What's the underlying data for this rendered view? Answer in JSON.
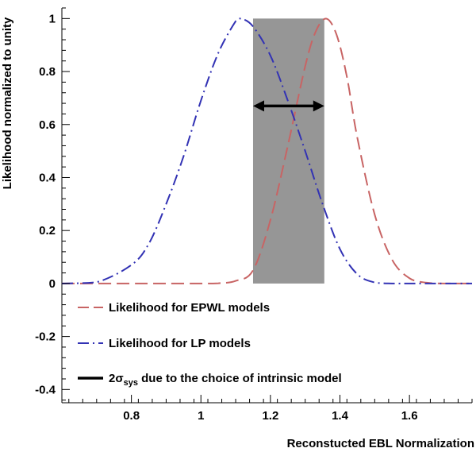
{
  "chart_data": {
    "type": "line",
    "title": "",
    "xlabel": "Reconstucted EBL Normalization",
    "ylabel": "Likelihood normalized to unity",
    "xlim": [
      0.6,
      1.78
    ],
    "ylim": [
      -0.45,
      1.04
    ],
    "x_ticks": [
      0.8,
      1.0,
      1.2,
      1.4,
      1.6
    ],
    "x_tick_labels": [
      "0.8",
      "1",
      "1.2",
      "1.4",
      "1.6"
    ],
    "y_ticks": [
      -0.4,
      -0.2,
      0,
      0.2,
      0.4,
      0.6,
      0.8,
      1.0
    ],
    "y_tick_labels": [
      "-0.4",
      "-0.2",
      "0",
      "0.2",
      "0.4",
      "0.6",
      "0.8",
      "1"
    ],
    "grid": false,
    "legend_position": "lower-left inside",
    "series": [
      {
        "name": "Likelihood for EPWL models",
        "style": "long-dash",
        "color": "#c86464",
        "peak_x": 1.36,
        "x": [
          0.6,
          0.8,
          0.9,
          1.0,
          1.05,
          1.1,
          1.15,
          1.2,
          1.25,
          1.3,
          1.33,
          1.36,
          1.39,
          1.42,
          1.45,
          1.5,
          1.55,
          1.6,
          1.65,
          1.7,
          1.78
        ],
        "values": [
          0,
          0,
          0,
          0,
          0.001,
          0.01,
          0.05,
          0.24,
          0.52,
          0.82,
          0.95,
          1.0,
          0.94,
          0.78,
          0.55,
          0.26,
          0.09,
          0.02,
          0.003,
          0,
          0
        ]
      },
      {
        "name": "Likelihood for LP models",
        "style": "dash-dot",
        "color": "#3232b4",
        "peak_x": 1.115,
        "x": [
          0.6,
          0.7,
          0.8,
          0.85,
          0.9,
          0.95,
          1.0,
          1.05,
          1.1,
          1.115,
          1.15,
          1.2,
          1.25,
          1.3,
          1.35,
          1.4,
          1.45,
          1.5,
          1.55,
          1.6,
          1.65,
          1.7,
          1.78
        ],
        "values": [
          0,
          0.005,
          0.07,
          0.15,
          0.3,
          0.48,
          0.69,
          0.87,
          0.99,
          1.0,
          0.97,
          0.86,
          0.69,
          0.5,
          0.3,
          0.13,
          0.035,
          0.004,
          0,
          0,
          0,
          0,
          0
        ]
      }
    ],
    "band": {
      "name": "2σsys due to the choice of intrinsic model",
      "x_range": [
        1.15,
        1.355
      ],
      "y_range": [
        0,
        1.0
      ],
      "color": "#969696"
    },
    "arrow": {
      "x_range": [
        1.15,
        1.355
      ],
      "y": 0.67,
      "color": "#000000"
    },
    "legend": [
      {
        "label": "Likelihood for EPWL models",
        "style": "long-dash",
        "color": "#c86464"
      },
      {
        "label": "Likelihood for LP models",
        "style": "dash-dot",
        "color": "#3232b4"
      },
      {
        "label_main": "2σ",
        "label_sub": "sys",
        "label_rest": " due to the choice of intrinsic model",
        "style": "solid",
        "color": "#000000"
      }
    ]
  }
}
